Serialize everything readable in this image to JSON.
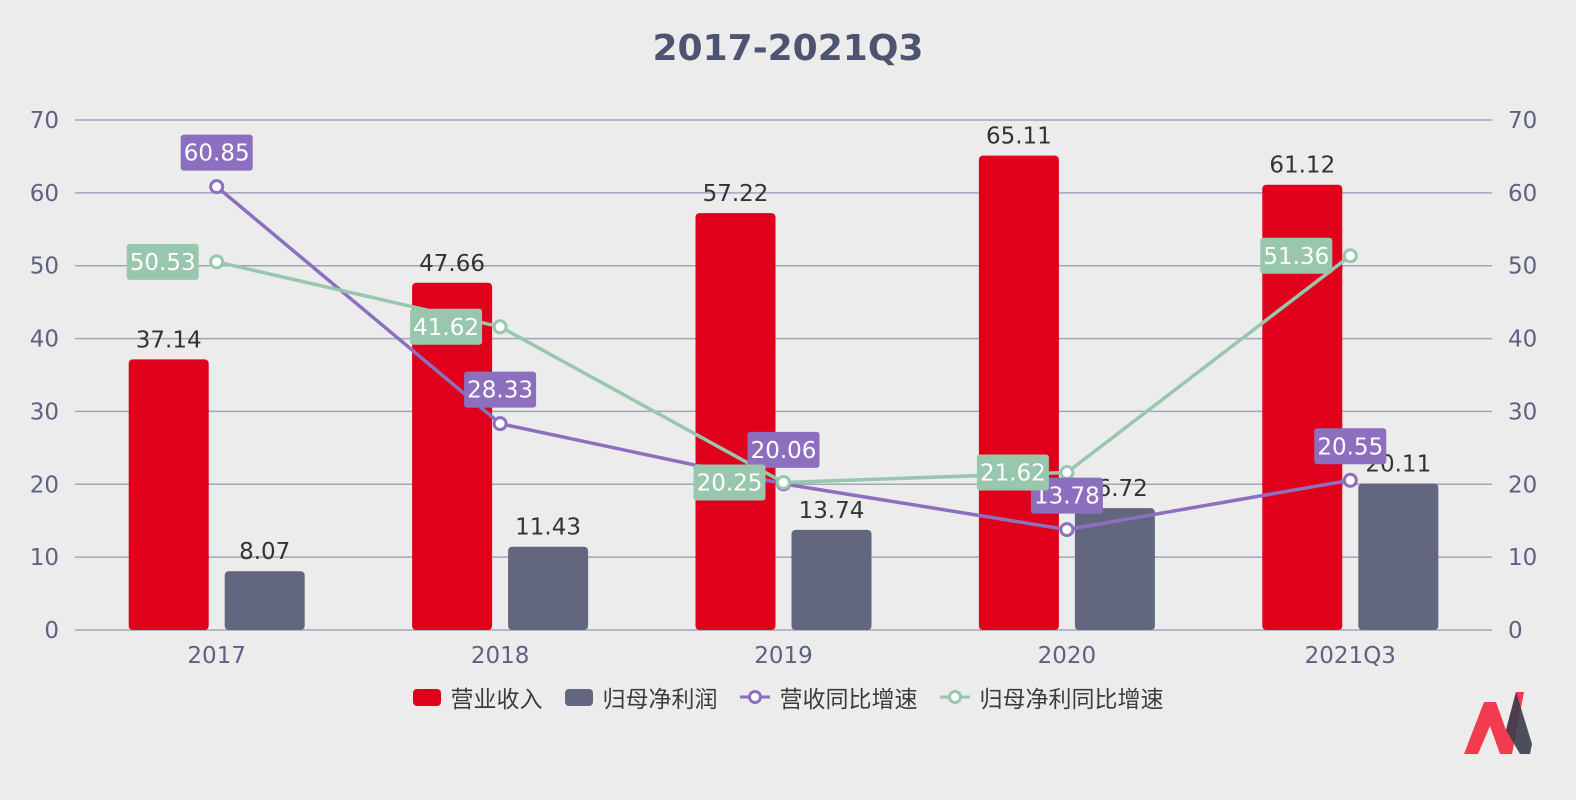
{
  "title": "2017-2021Q3",
  "chart_data": {
    "type": "bar+line",
    "title": "2017-2021Q3",
    "categories": [
      "2017",
      "2018",
      "2019",
      "2020",
      "2021Q3"
    ],
    "series": [
      {
        "name": "营业收入",
        "type": "bar",
        "axis": "left",
        "color": "#e0001b",
        "values": [
          37.14,
          47.66,
          57.22,
          65.11,
          61.12
        ]
      },
      {
        "name": "归母净利润",
        "type": "bar",
        "axis": "left",
        "color": "#62667e",
        "values": [
          8.07,
          11.43,
          13.74,
          16.72,
          20.11
        ]
      },
      {
        "name": "营收同比增速",
        "type": "line",
        "axis": "right",
        "color": "#8d6fc0",
        "values": [
          60.85,
          28.33,
          20.06,
          13.78,
          20.55
        ]
      },
      {
        "name": "归母净利同比增速",
        "type": "line",
        "axis": "right",
        "color": "#98c7ae",
        "values": [
          50.53,
          41.62,
          20.25,
          21.62,
          51.36
        ]
      }
    ],
    "y_left": {
      "min": 0,
      "max": 70,
      "ticks": [
        "0",
        "10",
        "20",
        "30",
        "40",
        "50",
        "60",
        "70"
      ]
    },
    "y_right": {
      "min": 0,
      "max": 70,
      "ticks": [
        "0",
        "10",
        "20",
        "30",
        "40",
        "50",
        "60",
        "70"
      ]
    },
    "grid": true,
    "legend": "bottom-center",
    "grid_color": "#a2a5bb",
    "axis_text_color": "#5e6282"
  },
  "logo": {
    "icon": "brand-logo-icon",
    "colors": [
      "#f23b4e",
      "#3a3d4d"
    ]
  }
}
